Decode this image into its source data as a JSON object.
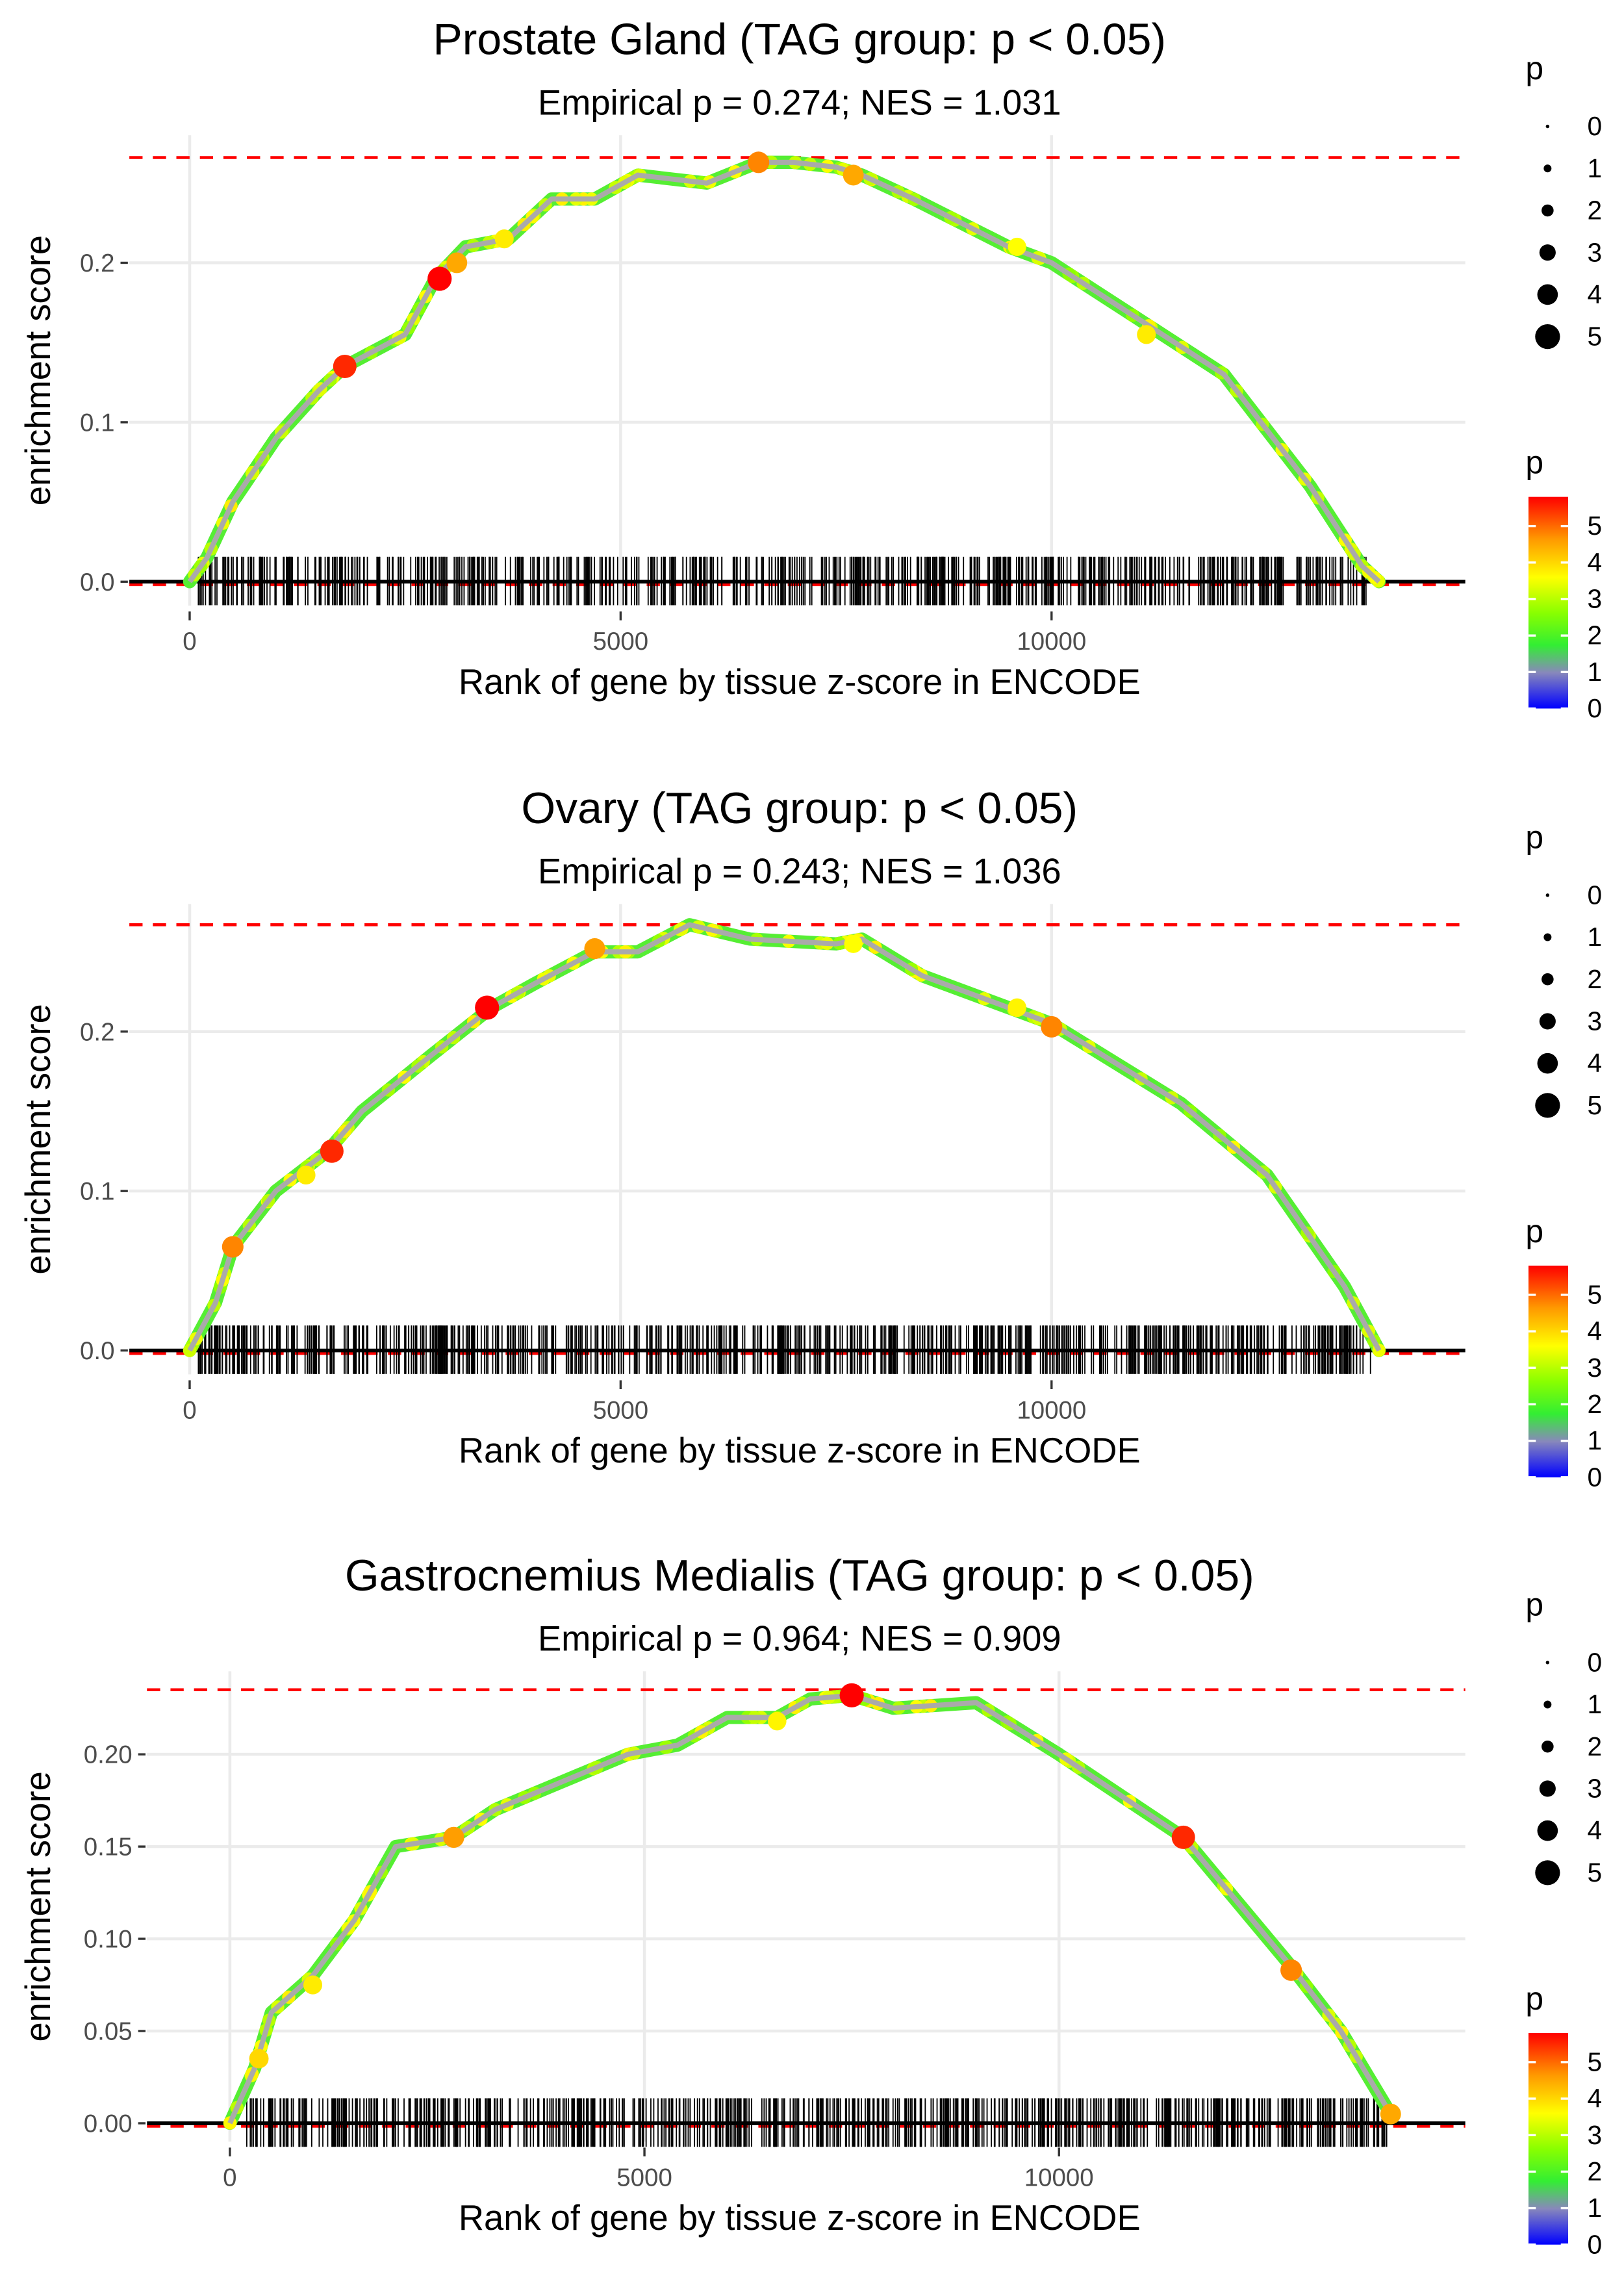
{
  "colors": {
    "max_line": "#ff0000",
    "hit_tick": "#000000",
    "curve_outer": "#55ee33",
    "curve_inner": "#aaaaaa",
    "grid": "#ebebeb"
  },
  "chart_data": [
    {
      "type": "line",
      "title": "Prostate Gland (TAG group: p < 0.05)",
      "subtitle": "Empirical p = 0.274; NES = 1.031",
      "xlabel": "Rank of gene by tissue z-score in ENCODE",
      "ylabel": "enrichment score",
      "xlim": [
        -700,
        14800
      ],
      "ylim": [
        -0.015,
        0.28
      ],
      "xticks": [
        0,
        5000,
        10000
      ],
      "xtick_labels": [
        "0",
        "5000",
        "10000"
      ],
      "yticks": [
        0.0,
        0.1,
        0.2
      ],
      "ytick_labels": [
        "0.0",
        "0.1",
        "0.2"
      ],
      "max_es": 0.266,
      "curve": [
        [
          0,
          0
        ],
        [
          200,
          0.015
        ],
        [
          500,
          0.05
        ],
        [
          1000,
          0.09
        ],
        [
          1500,
          0.12
        ],
        [
          1800,
          0.135
        ],
        [
          2500,
          0.155
        ],
        [
          2850,
          0.19
        ],
        [
          3200,
          0.21
        ],
        [
          3700,
          0.215
        ],
        [
          4200,
          0.24
        ],
        [
          4700,
          0.24
        ],
        [
          5200,
          0.255
        ],
        [
          6000,
          0.25
        ],
        [
          6600,
          0.263
        ],
        [
          7000,
          0.263
        ],
        [
          7500,
          0.26
        ],
        [
          7800,
          0.255
        ],
        [
          8400,
          0.24
        ],
        [
          9500,
          0.21
        ],
        [
          10000,
          0.2
        ],
        [
          11000,
          0.165
        ],
        [
          12000,
          0.13
        ],
        [
          13000,
          0.06
        ],
        [
          13600,
          0.01
        ],
        [
          13800,
          0
        ]
      ],
      "highlights": [
        [
          1800,
          0.135,
          5.5
        ],
        [
          2900,
          0.19,
          5.8
        ],
        [
          3100,
          0.2,
          4.5
        ],
        [
          6600,
          0.263,
          4.8
        ],
        [
          7700,
          0.255,
          4.5
        ],
        [
          3650,
          0.215,
          3.8
        ],
        [
          9600,
          0.21,
          3.6
        ],
        [
          11100,
          0.155,
          3.8
        ]
      ],
      "hits": {
        "count": 650,
        "range": [
          100,
          13700
        ]
      }
    },
    {
      "type": "line",
      "title": "Ovary (TAG group: p < 0.05)",
      "subtitle": "Empirical p = 0.243; NES = 1.036",
      "xlabel": "Rank of gene by tissue z-score in ENCODE",
      "ylabel": "enrichment score",
      "xlim": [
        -700,
        14800
      ],
      "ylim": [
        -0.015,
        0.28
      ],
      "xticks": [
        0,
        5000,
        10000
      ],
      "xtick_labels": [
        "0",
        "5000",
        "10000"
      ],
      "yticks": [
        0.0,
        0.1,
        0.2
      ],
      "ytick_labels": [
        "0.0",
        "0.1",
        "0.2"
      ],
      "max_es": 0.267,
      "curve": [
        [
          0,
          0
        ],
        [
          300,
          0.03
        ],
        [
          500,
          0.065
        ],
        [
          1000,
          0.1
        ],
        [
          1600,
          0.125
        ],
        [
          2000,
          0.15
        ],
        [
          2800,
          0.185
        ],
        [
          3500,
          0.215
        ],
        [
          4000,
          0.23
        ],
        [
          4700,
          0.25
        ],
        [
          5200,
          0.25
        ],
        [
          5800,
          0.267
        ],
        [
          6500,
          0.258
        ],
        [
          7500,
          0.255
        ],
        [
          7800,
          0.258
        ],
        [
          8500,
          0.235
        ],
        [
          10000,
          0.205
        ],
        [
          11500,
          0.155
        ],
        [
          12500,
          0.11
        ],
        [
          13400,
          0.04
        ],
        [
          13800,
          0
        ]
      ],
      "highlights": [
        [
          500,
          0.065,
          4.8
        ],
        [
          1650,
          0.125,
          5.5
        ],
        [
          3450,
          0.215,
          5.8
        ],
        [
          4700,
          0.252,
          4.6
        ],
        [
          10000,
          0.203,
          4.8
        ],
        [
          1350,
          0.11,
          3.8
        ],
        [
          9600,
          0.215,
          3.7
        ],
        [
          7700,
          0.255,
          3.6
        ]
      ],
      "hits": {
        "count": 700,
        "range": [
          100,
          13700
        ]
      }
    },
    {
      "type": "line",
      "title": "Gastrocnemius Medialis (TAG group: p < 0.05)",
      "subtitle": "Empirical p = 0.964; NES = 0.909",
      "xlabel": "Rank of gene by tissue z-score in ENCODE",
      "ylabel": "enrichment score",
      "xlim": [
        -1000,
        14900
      ],
      "ylim": [
        -0.01,
        0.245
      ],
      "xticks": [
        0,
        5000,
        10000
      ],
      "xtick_labels": [
        "0",
        "5000",
        "10000"
      ],
      "yticks": [
        0.0,
        0.05,
        0.1,
        0.15,
        0.2
      ],
      "ytick_labels": [
        "0.00",
        "0.05",
        "0.10",
        "0.15",
        "0.20"
      ],
      "max_es": 0.235,
      "curve": [
        [
          0,
          0
        ],
        [
          300,
          0.03
        ],
        [
          500,
          0.06
        ],
        [
          1000,
          0.08
        ],
        [
          1500,
          0.11
        ],
        [
          2000,
          0.15
        ],
        [
          2700,
          0.155
        ],
        [
          3200,
          0.17
        ],
        [
          4000,
          0.185
        ],
        [
          4800,
          0.2
        ],
        [
          5400,
          0.205
        ],
        [
          6000,
          0.22
        ],
        [
          6600,
          0.22
        ],
        [
          7000,
          0.23
        ],
        [
          7500,
          0.232
        ],
        [
          8000,
          0.225
        ],
        [
          9000,
          0.228
        ],
        [
          10000,
          0.2
        ],
        [
          11500,
          0.155
        ],
        [
          12800,
          0.085
        ],
        [
          13400,
          0.05
        ],
        [
          14000,
          0.005
        ]
      ],
      "highlights": [
        [
          2700,
          0.155,
          4.6
        ],
        [
          7500,
          0.232,
          5.8
        ],
        [
          11500,
          0.155,
          5.5
        ],
        [
          12800,
          0.083,
          4.8
        ],
        [
          14000,
          0.005,
          4.5
        ],
        [
          350,
          0.035,
          4.0
        ],
        [
          1000,
          0.075,
          3.8
        ],
        [
          6600,
          0.218,
          3.7
        ]
      ],
      "hits": {
        "count": 680,
        "range": [
          200,
          14000
        ]
      }
    }
  ],
  "legend": {
    "size_title": "p",
    "size_labels": [
      "0",
      "1",
      "2",
      "3",
      "4",
      "5"
    ],
    "color_title": "p",
    "color_labels": [
      "5",
      "4",
      "3",
      "2",
      "1",
      "0"
    ],
    "color_range": [
      0,
      5.8
    ]
  }
}
